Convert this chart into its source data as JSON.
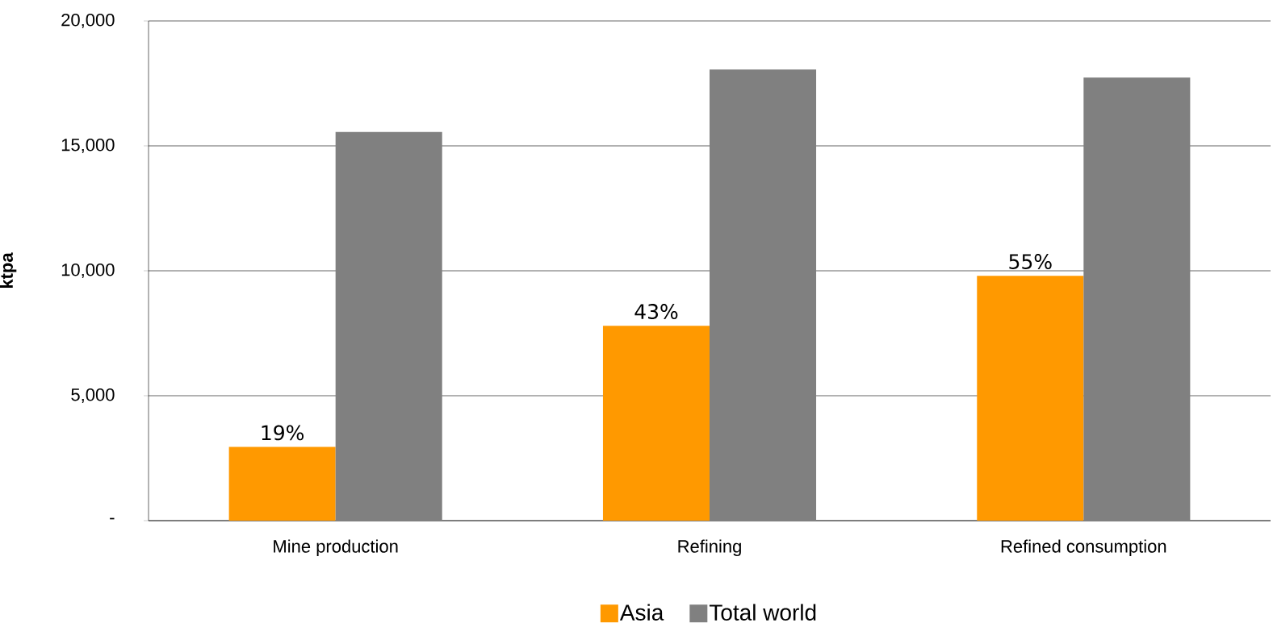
{
  "chart_data": {
    "type": "bar",
    "ylabel": "ktpa",
    "categories": [
      "Mine production",
      "Refining",
      "Refined consumption"
    ],
    "series": [
      {
        "name": "Asia",
        "color": "#ff9900",
        "values": [
          2950,
          7800,
          9800
        ]
      },
      {
        "name": "Total world",
        "color": "#808080",
        "values": [
          15560,
          18060,
          17730
        ]
      }
    ],
    "ylim": [
      0,
      20000
    ],
    "yticks": [
      {
        "value": 0,
        "label": "-"
      },
      {
        "value": 5000,
        "label": "5,000"
      },
      {
        "value": 10000,
        "label": "10,000"
      },
      {
        "value": 15000,
        "label": "15,000"
      },
      {
        "value": 20000,
        "label": "20,000"
      }
    ],
    "annotations": [
      {
        "text": "19%",
        "x": "Mine production",
        "y": 2950
      },
      {
        "text": "43%",
        "x": "Refining",
        "y": 7800
      },
      {
        "text": "55%",
        "x": "Refined consumption",
        "y": 9800
      }
    ],
    "grid": "y",
    "legend": "bottom"
  }
}
